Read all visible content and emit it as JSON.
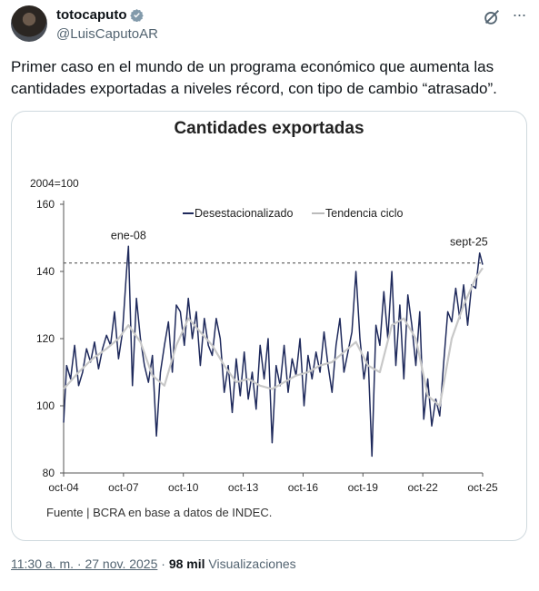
{
  "author": {
    "name": "totocaputo",
    "handle": "@LuisCaputoAR"
  },
  "tweet": {
    "text": "Primer caso en el mundo de un programa económico que aumenta las cantidades exportadas a niveles récord, con tipo de cambio “atrasado”."
  },
  "icons": [
    "verified-badge-icon",
    "grok-icon",
    "more-options-icon"
  ],
  "meta": {
    "time": "11:30 a. m. · 27 nov. 2025",
    "separator": " · ",
    "views_count": "98 mil",
    "views_label": "Visualizaciones"
  },
  "colors": {
    "series_desestacionalizado": "#1f2a5c",
    "series_tendencia": "#c8c8c8",
    "verified": "#829aab"
  },
  "chart_data": {
    "type": "line",
    "title": "Cantidades exportadas",
    "unit_label": "2004=100",
    "source": "Fuente | BCRA en base a datos de INDEC.",
    "x_tick_labels": [
      "oct-04",
      "oct-07",
      "oct-10",
      "oct-13",
      "oct-16",
      "oct-19",
      "oct-22",
      "oct-25"
    ],
    "y_ticks": [
      80,
      100,
      120,
      140,
      160
    ],
    "ylim": [
      80,
      160
    ],
    "reference_line": 142.5,
    "annotations": [
      {
        "label": "ene-08",
        "x": 2008.0,
        "y": 147.5
      },
      {
        "label": "sept-25",
        "x": 2025.7,
        "y": 145.5
      }
    ],
    "legend_placement": "top",
    "series": [
      {
        "name": "Desestacionalizado",
        "x": [
          2004.75,
          2004.9,
          2005.1,
          2005.3,
          2005.5,
          2005.7,
          2005.9,
          2006.1,
          2006.3,
          2006.5,
          2006.7,
          2006.9,
          2007.1,
          2007.3,
          2007.5,
          2007.7,
          2007.9,
          2008.0,
          2008.2,
          2008.4,
          2008.6,
          2008.8,
          2009.0,
          2009.2,
          2009.4,
          2009.6,
          2009.8,
          2010.0,
          2010.2,
          2010.4,
          2010.6,
          2010.8,
          2011.0,
          2011.2,
          2011.4,
          2011.6,
          2011.8,
          2012.0,
          2012.2,
          2012.4,
          2012.6,
          2012.8,
          2013.0,
          2013.2,
          2013.4,
          2013.6,
          2013.8,
          2014.0,
          2014.2,
          2014.4,
          2014.6,
          2014.8,
          2015.0,
          2015.2,
          2015.4,
          2015.6,
          2015.8,
          2016.0,
          2016.2,
          2016.4,
          2016.6,
          2016.8,
          2017.0,
          2017.2,
          2017.4,
          2017.6,
          2017.8,
          2018.0,
          2018.2,
          2018.4,
          2018.6,
          2018.8,
          2019.0,
          2019.2,
          2019.4,
          2019.6,
          2019.8,
          2020.0,
          2020.2,
          2020.4,
          2020.6,
          2020.8,
          2021.0,
          2021.2,
          2021.4,
          2021.6,
          2021.8,
          2022.0,
          2022.2,
          2022.4,
          2022.6,
          2022.8,
          2023.0,
          2023.2,
          2023.4,
          2023.6,
          2023.8,
          2024.0,
          2024.2,
          2024.4,
          2024.6,
          2024.8,
          2025.0,
          2025.2,
          2025.4,
          2025.6,
          2025.75
        ],
        "values": [
          95,
          112,
          108,
          118,
          106,
          110,
          117,
          113,
          119,
          111,
          117,
          121,
          118,
          128,
          114,
          122,
          140,
          147.5,
          106,
          132,
          120,
          112,
          107,
          115,
          91,
          110,
          118,
          125,
          110,
          130,
          128,
          118,
          132,
          120,
          128,
          112,
          126,
          118,
          115,
          126,
          120,
          104,
          112,
          98,
          114,
          103,
          116,
          102,
          110,
          99,
          118,
          108,
          120,
          89,
          112,
          106,
          118,
          104,
          114,
          109,
          120,
          100,
          115,
          108,
          116,
          110,
          122,
          112,
          104,
          118,
          126,
          110,
          116,
          122,
          140,
          120,
          108,
          116,
          85,
          124,
          118,
          134,
          120,
          140,
          112,
          130,
          108,
          133,
          124,
          112,
          128,
          96,
          108,
          94,
          102,
          97,
          113,
          128,
          125,
          135,
          126,
          136,
          124,
          136,
          135,
          145.5,
          142
        ]
      },
      {
        "name": "Tendencia ciclo",
        "x": [
          2004.75,
          2005.5,
          2006.2,
          2006.9,
          2007.5,
          2008.0,
          2008.6,
          2009.2,
          2009.8,
          2010.4,
          2011.0,
          2011.6,
          2012.2,
          2012.8,
          2013.4,
          2014.0,
          2014.6,
          2015.2,
          2015.8,
          2016.4,
          2017.0,
          2017.6,
          2018.2,
          2018.8,
          2019.4,
          2020.0,
          2020.6,
          2021.2,
          2021.8,
          2022.4,
          2023.0,
          2023.6,
          2024.2,
          2024.8,
          2025.4,
          2025.75
        ],
        "values": [
          105,
          110,
          114,
          117,
          120,
          124,
          119,
          109,
          106,
          118,
          126,
          122,
          118,
          112,
          107,
          108,
          106,
          105,
          107,
          109,
          110,
          112,
          113,
          116,
          119,
          112,
          110,
          124,
          126,
          120,
          103,
          100,
          120,
          130,
          138,
          141
        ]
      }
    ]
  }
}
